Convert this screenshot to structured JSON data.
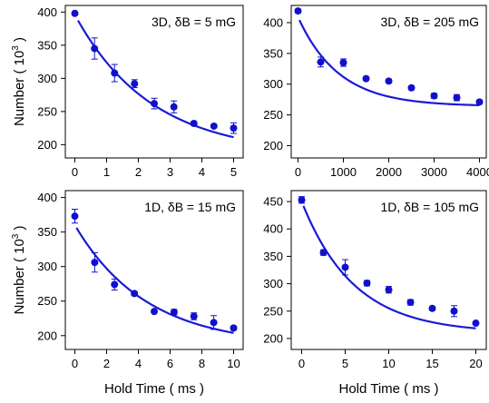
{
  "colors": {
    "marker": "#1010cc",
    "fit": "#1a1ad6",
    "axis": "#000000"
  },
  "ylabel_main": "Number ( 10",
  "ylabel_exp": "3",
  "ylabel_close": " )",
  "xlabel": "Hold Time ( ms )",
  "chart_data": [
    {
      "type": "scatter",
      "annotation": "3D, δB = 5 mG",
      "xlim": [
        -0.3,
        5.3
      ],
      "ylim": [
        180,
        410
      ],
      "xticks": [
        0,
        1,
        2,
        3,
        4,
        5
      ],
      "yticks": [
        200,
        250,
        300,
        350,
        400
      ],
      "x": [
        0,
        0.62,
        1.25,
        1.88,
        2.5,
        3.12,
        3.75,
        4.38,
        5
      ],
      "y": [
        398,
        345,
        308,
        292,
        262,
        257,
        232,
        228,
        225
      ],
      "yerr": [
        2,
        16,
        13,
        6,
        8,
        9,
        3,
        2,
        8
      ],
      "fit": {
        "y0": 185,
        "A": 211,
        "tau": 2.4,
        "x_start": 0.1,
        "x_end": 5
      }
    },
    {
      "type": "scatter",
      "annotation": "3D, δB = 205 mG",
      "xlim": [
        -150,
        4150
      ],
      "ylim": [
        180,
        428
      ],
      "xticks": [
        0,
        1000,
        2000,
        3000,
        4000
      ],
      "yticks": [
        200,
        250,
        300,
        350,
        400
      ],
      "x": [
        0,
        500,
        1000,
        1500,
        2000,
        2500,
        3000,
        3500,
        4000
      ],
      "y": [
        419,
        336,
        335,
        309,
        305,
        294,
        281,
        278,
        271
      ],
      "yerr": [
        3,
        8,
        6,
        3,
        3,
        3,
        4,
        5,
        3
      ],
      "fit": {
        "y0": 264,
        "A": 145,
        "tau": 900,
        "x_start": 30,
        "x_end": 4000
      }
    },
    {
      "type": "scatter",
      "annotation": "1D, δB = 15 mG",
      "xlim": [
        -0.6,
        10.6
      ],
      "ylim": [
        180,
        410
      ],
      "xticks": [
        0,
        2,
        4,
        6,
        8,
        10
      ],
      "yticks": [
        200,
        250,
        300,
        350,
        400
      ],
      "x": [
        0,
        1.25,
        2.5,
        3.75,
        5,
        6.25,
        7.5,
        8.75,
        10
      ],
      "y": [
        373,
        306,
        274,
        261,
        235,
        234,
        228,
        219,
        211
      ],
      "yerr": [
        10,
        14,
        8,
        3,
        2,
        4,
        5,
        10,
        3
      ],
      "fit": {
        "y0": 185,
        "A": 175,
        "tau": 4.5,
        "x_start": 0.1,
        "x_end": 10
      }
    },
    {
      "type": "scatter",
      "annotation": "1D, δB = 105 mG",
      "xlim": [
        -1.2,
        21.2
      ],
      "ylim": [
        180,
        470
      ],
      "xticks": [
        0,
        5,
        10,
        15,
        20
      ],
      "yticks": [
        200,
        250,
        300,
        350,
        400,
        450
      ],
      "x": [
        0,
        2.5,
        5,
        7.5,
        10,
        12.5,
        15,
        17.5,
        20
      ],
      "y": [
        453,
        357,
        330,
        301,
        289,
        266,
        255,
        250,
        228
      ],
      "yerr": [
        6,
        5,
        14,
        5,
        6,
        5,
        3,
        10,
        2
      ],
      "fit": {
        "y0": 210,
        "A": 240,
        "tau": 6,
        "x_start": 0.2,
        "x_end": 20
      }
    }
  ]
}
